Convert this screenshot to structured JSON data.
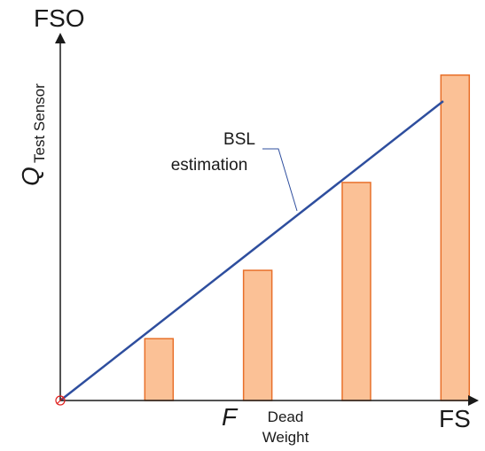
{
  "chart_data": {
    "type": "bar",
    "x_axis": {
      "end_label": "FS",
      "label_main": "F",
      "label_sub_line1": "Dead",
      "label_sub_line2": "Weight"
    },
    "y_axis": {
      "end_label": "FSO",
      "label_main": "Q",
      "label_sub": "Test Sensor"
    },
    "bars": [
      {
        "x": 0.25,
        "value": 0.19
      },
      {
        "x": 0.5,
        "value": 0.4
      },
      {
        "x": 0.75,
        "value": 0.67
      },
      {
        "x": 1.0,
        "value": 1.0
      }
    ],
    "xlim": [
      0,
      1.06
    ],
    "ylim": [
      0,
      1.13
    ],
    "bsl_line": {
      "from": [
        0,
        0
      ],
      "to": [
        0.97,
        0.92
      ]
    },
    "annotation": {
      "line1": "BSL",
      "line2": "estimation"
    },
    "colors": {
      "bar_fill": "#FBC196",
      "bar_stroke": "#E8702A",
      "line": "#2E4E9E",
      "axis": "#1a1a1a",
      "origin_marker": "#E0201E"
    }
  }
}
